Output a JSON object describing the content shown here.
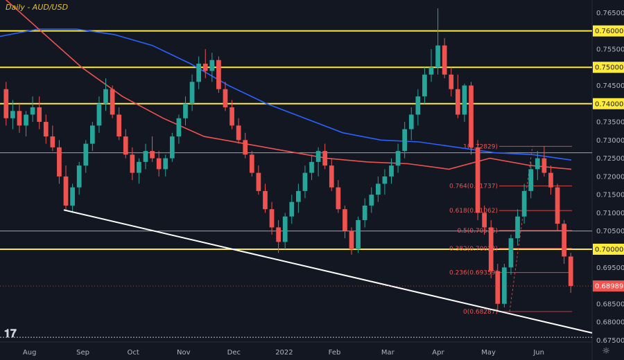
{
  "header": {
    "title": "Daily - AUD/USD"
  },
  "chart_data": {
    "type": "candlestick",
    "title": "Daily - AUD/USD",
    "ylim": [
      0.6745,
      0.7685
    ],
    "x_ticks": [
      "Aug",
      "Sep",
      "Oct",
      "Nov",
      "Dec",
      "2022",
      "Feb",
      "Mar",
      "Apr",
      "May",
      "Jun"
    ],
    "y_ticks": [
      "0.76500",
      "0.76000",
      "0.75500",
      "0.75000",
      "0.74500",
      "0.74000",
      "0.73500",
      "0.73000",
      "0.72500",
      "0.72000",
      "0.71500",
      "0.71000",
      "0.70500",
      "0.70000",
      "0.69500",
      "0.69000",
      "0.68500",
      "0.68000",
      "0.67500"
    ],
    "horizontal_levels": [
      {
        "value": 0.76,
        "label": "0.76000",
        "color": "#ffeb3b"
      },
      {
        "value": 0.75,
        "label": "0.75000",
        "color": "#ffeb3b"
      },
      {
        "value": 0.74,
        "label": "0.74000",
        "color": "#ffeb3b"
      },
      {
        "value": 0.7,
        "label": "0.70000",
        "color": "#ffeb3b"
      }
    ],
    "current_price": {
      "value": 0.68989,
      "label": "0.68989",
      "color": "#ef5350"
    },
    "fibonacci": [
      {
        "label": "1(0.72829)",
        "value": 0.72829
      },
      {
        "label": "0.764(0.71737)",
        "value": 0.71737
      },
      {
        "label": "0.618(0.71062)",
        "value": 0.71062
      },
      {
        "label": "0.5(0.70516)",
        "value": 0.70516
      },
      {
        "label": "0.382(0.70023)",
        "value": 0.70023
      },
      {
        "label": "0.236(0.69359)",
        "value": 0.69359
      },
      {
        "label": "0(0.68287)",
        "value": 0.68287
      }
    ],
    "trendline": {
      "from": {
        "x": "Aug",
        "y": 0.7108
      },
      "to": {
        "x": "end",
        "y": 0.677
      },
      "color": "#ffffff"
    },
    "moving_averages": [
      {
        "color": "#2962ff",
        "points": [
          0.7585,
          0.7605,
          0.7605,
          0.759,
          0.756,
          0.751,
          0.745,
          0.74,
          0.736,
          0.732,
          0.73,
          0.7295,
          0.728,
          0.7265,
          0.726,
          0.7245
        ]
      },
      {
        "color": "#ef5350",
        "points": [
          0.77,
          0.76,
          0.75,
          0.742,
          0.736,
          0.731,
          0.729,
          0.727,
          0.725,
          0.724,
          0.7235,
          0.722,
          0.725,
          0.723,
          0.722
        ]
      }
    ],
    "candle_colors": {
      "up": "#26a69a",
      "down": "#ef5350"
    },
    "candles": [
      [
        0.744,
        0.746,
        0.734,
        0.736
      ],
      [
        0.736,
        0.741,
        0.733,
        0.738
      ],
      [
        0.738,
        0.74,
        0.732,
        0.734
      ],
      [
        0.734,
        0.738,
        0.731,
        0.737
      ],
      [
        0.737,
        0.742,
        0.735,
        0.739
      ],
      [
        0.739,
        0.742,
        0.733,
        0.735
      ],
      [
        0.735,
        0.737,
        0.729,
        0.731
      ],
      [
        0.731,
        0.734,
        0.727,
        0.728
      ],
      [
        0.728,
        0.73,
        0.718,
        0.72
      ],
      [
        0.72,
        0.723,
        0.7105,
        0.712
      ],
      [
        0.712,
        0.718,
        0.71,
        0.717
      ],
      [
        0.717,
        0.724,
        0.715,
        0.723
      ],
      [
        0.723,
        0.73,
        0.721,
        0.729
      ],
      [
        0.729,
        0.735,
        0.727,
        0.734
      ],
      [
        0.734,
        0.742,
        0.732,
        0.74
      ],
      [
        0.74,
        0.747,
        0.738,
        0.744
      ],
      [
        0.744,
        0.745,
        0.736,
        0.737
      ],
      [
        0.737,
        0.739,
        0.73,
        0.731
      ],
      [
        0.731,
        0.733,
        0.725,
        0.726
      ],
      [
        0.726,
        0.728,
        0.719,
        0.721
      ],
      [
        0.721,
        0.725,
        0.718,
        0.724
      ],
      [
        0.724,
        0.729,
        0.722,
        0.727
      ],
      [
        0.727,
        0.731,
        0.724,
        0.725
      ],
      [
        0.725,
        0.727,
        0.72,
        0.722
      ],
      [
        0.722,
        0.726,
        0.72,
        0.725
      ],
      [
        0.725,
        0.732,
        0.724,
        0.731
      ],
      [
        0.731,
        0.737,
        0.729,
        0.736
      ],
      [
        0.736,
        0.742,
        0.734,
        0.74
      ],
      [
        0.74,
        0.748,
        0.738,
        0.746
      ],
      [
        0.746,
        0.753,
        0.744,
        0.751
      ],
      [
        0.751,
        0.755,
        0.747,
        0.749
      ],
      [
        0.749,
        0.754,
        0.746,
        0.752
      ],
      [
        0.752,
        0.753,
        0.743,
        0.744
      ],
      [
        0.744,
        0.746,
        0.738,
        0.739
      ],
      [
        0.739,
        0.741,
        0.733,
        0.734
      ],
      [
        0.734,
        0.736,
        0.729,
        0.73
      ],
      [
        0.73,
        0.732,
        0.725,
        0.726
      ],
      [
        0.726,
        0.727,
        0.72,
        0.721
      ],
      [
        0.721,
        0.723,
        0.715,
        0.716
      ],
      [
        0.716,
        0.718,
        0.71,
        0.711
      ],
      [
        0.711,
        0.713,
        0.704,
        0.706
      ],
      [
        0.706,
        0.708,
        0.699,
        0.702
      ],
      [
        0.702,
        0.71,
        0.7,
        0.709
      ],
      [
        0.709,
        0.715,
        0.707,
        0.713
      ],
      [
        0.713,
        0.718,
        0.71,
        0.716
      ],
      [
        0.716,
        0.723,
        0.714,
        0.721
      ],
      [
        0.721,
        0.726,
        0.719,
        0.724
      ],
      [
        0.724,
        0.728,
        0.72,
        0.727
      ],
      [
        0.727,
        0.729,
        0.722,
        0.723
      ],
      [
        0.723,
        0.725,
        0.716,
        0.717
      ],
      [
        0.717,
        0.719,
        0.71,
        0.711
      ],
      [
        0.711,
        0.712,
        0.703,
        0.705
      ],
      [
        0.705,
        0.706,
        0.6985,
        0.7
      ],
      [
        0.7,
        0.709,
        0.699,
        0.708
      ],
      [
        0.708,
        0.714,
        0.706,
        0.712
      ],
      [
        0.712,
        0.717,
        0.71,
        0.715
      ],
      [
        0.715,
        0.72,
        0.713,
        0.718
      ],
      [
        0.718,
        0.722,
        0.715,
        0.72
      ],
      [
        0.72,
        0.725,
        0.718,
        0.723
      ],
      [
        0.723,
        0.729,
        0.721,
        0.727
      ],
      [
        0.727,
        0.735,
        0.725,
        0.733
      ],
      [
        0.733,
        0.739,
        0.73,
        0.737
      ],
      [
        0.737,
        0.744,
        0.734,
        0.742
      ],
      [
        0.742,
        0.75,
        0.74,
        0.748
      ],
      [
        0.748,
        0.755,
        0.746,
        0.75
      ],
      [
        0.75,
        0.7662,
        0.748,
        0.756
      ],
      [
        0.756,
        0.758,
        0.747,
        0.748
      ],
      [
        0.748,
        0.75,
        0.742,
        0.744
      ],
      [
        0.744,
        0.748,
        0.736,
        0.737
      ],
      [
        0.737,
        0.7455,
        0.735,
        0.745
      ],
      [
        0.745,
        0.746,
        0.726,
        0.728
      ],
      [
        0.728,
        0.73,
        0.708,
        0.71
      ],
      [
        0.71,
        0.712,
        0.704,
        0.706
      ],
      [
        0.706,
        0.708,
        0.692,
        0.694
      ],
      [
        0.694,
        0.696,
        0.683,
        0.685
      ],
      [
        0.685,
        0.696,
        0.684,
        0.695
      ],
      [
        0.695,
        0.704,
        0.693,
        0.703
      ],
      [
        0.703,
        0.711,
        0.701,
        0.709
      ],
      [
        0.709,
        0.718,
        0.707,
        0.716
      ],
      [
        0.716,
        0.724,
        0.714,
        0.722
      ],
      [
        0.722,
        0.727,
        0.719,
        0.725
      ],
      [
        0.725,
        0.7283,
        0.72,
        0.721
      ],
      [
        0.721,
        0.723,
        0.715,
        0.717
      ],
      [
        0.717,
        0.718,
        0.705,
        0.707
      ],
      [
        0.707,
        0.708,
        0.696,
        0.698
      ],
      [
        0.698,
        0.699,
        0.688,
        0.6899
      ]
    ]
  }
}
